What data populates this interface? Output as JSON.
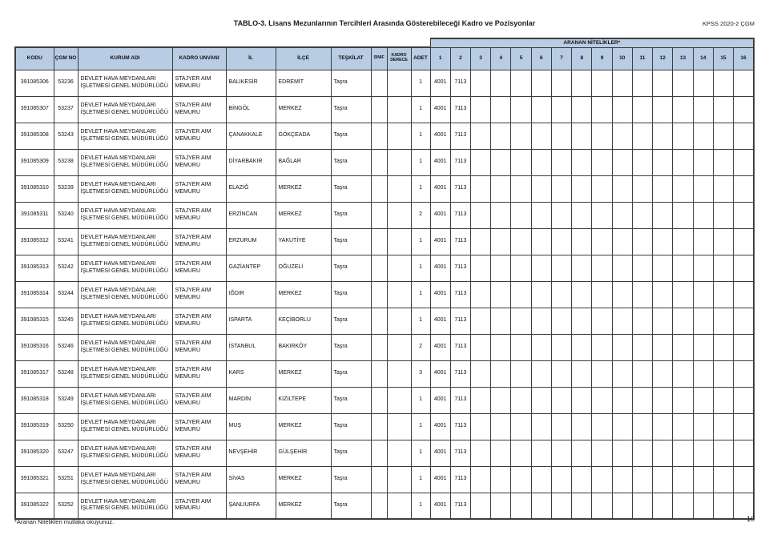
{
  "header": {
    "title": "TABLO-3. Lisans Mezunlarının Tercihleri Arasında Gösterebileceği Kadro ve Pozisyonlar",
    "exam_label": "KPSS 2020-2 ÇGM"
  },
  "table": {
    "qualifications_band_label": "ARANAN NİTELİKLER*",
    "columns": [
      "KODU",
      "ÇGM NO",
      "KURUM ADI",
      "KADRO UNVANI",
      "İL",
      "İLÇE",
      "TEŞKİLAT",
      "SINIF",
      "KADRO DERECE",
      "ADET"
    ],
    "qualification_columns": [
      "1",
      "2",
      "3",
      "4",
      "5",
      "6",
      "7",
      "8",
      "9",
      "10",
      "11",
      "12",
      "13",
      "14",
      "15",
      "16"
    ],
    "rows": [
      {
        "kodu": "391085306",
        "cgm_no": "53236",
        "kurum_adi": "DEVLET HAVA MEYDANLARI İŞLETMESİ GENEL MÜDÜRLÜĞÜ",
        "kadro_unvani": "STAJYER AIM MEMURU",
        "il": "BALIKESİR",
        "ilce": "EDREMİT",
        "teskilat": "Taşra",
        "sinif": "",
        "kadro_derece": "",
        "adet": "1",
        "nitelikler": [
          "4001",
          "7113"
        ]
      },
      {
        "kodu": "391085307",
        "cgm_no": "53237",
        "kurum_adi": "DEVLET HAVA MEYDANLARI İŞLETMESİ GENEL MÜDÜRLÜĞÜ",
        "kadro_unvani": "STAJYER AIM MEMURU",
        "il": "BİNGÖL",
        "ilce": "MERKEZ",
        "teskilat": "Taşra",
        "sinif": "",
        "kadro_derece": "",
        "adet": "1",
        "nitelikler": [
          "4001",
          "7113"
        ]
      },
      {
        "kodu": "391085308",
        "cgm_no": "53243",
        "kurum_adi": "DEVLET HAVA MEYDANLARI İŞLETMESİ GENEL MÜDÜRLÜĞÜ",
        "kadro_unvani": "STAJYER AIM MEMURU",
        "il": "ÇANAKKALE",
        "ilce": "GÖKÇEADA",
        "teskilat": "Taşra",
        "sinif": "",
        "kadro_derece": "",
        "adet": "1",
        "nitelikler": [
          "4001",
          "7113"
        ]
      },
      {
        "kodu": "391085309",
        "cgm_no": "53238",
        "kurum_adi": "DEVLET HAVA MEYDANLARI İŞLETMESİ GENEL MÜDÜRLÜĞÜ",
        "kadro_unvani": "STAJYER AIM MEMURU",
        "il": "DİYARBAKIR",
        "ilce": "BAĞLAR",
        "teskilat": "Taşra",
        "sinif": "",
        "kadro_derece": "",
        "adet": "1",
        "nitelikler": [
          "4001",
          "7113"
        ]
      },
      {
        "kodu": "391085310",
        "cgm_no": "53239",
        "kurum_adi": "DEVLET HAVA MEYDANLARI İŞLETMESİ GENEL MÜDÜRLÜĞÜ",
        "kadro_unvani": "STAJYER AIM MEMURU",
        "il": "ELAZIĞ",
        "ilce": "MERKEZ",
        "teskilat": "Taşra",
        "sinif": "",
        "kadro_derece": "",
        "adet": "1",
        "nitelikler": [
          "4001",
          "7113"
        ]
      },
      {
        "kodu": "391085311",
        "cgm_no": "53240",
        "kurum_adi": "DEVLET HAVA MEYDANLARI İŞLETMESİ GENEL MÜDÜRLÜĞÜ",
        "kadro_unvani": "STAJYER AIM MEMURU",
        "il": "ERZİNCAN",
        "ilce": "MERKEZ",
        "teskilat": "Taşra",
        "sinif": "",
        "kadro_derece": "",
        "adet": "2",
        "nitelikler": [
          "4001",
          "7113"
        ]
      },
      {
        "kodu": "391085312",
        "cgm_no": "53241",
        "kurum_adi": "DEVLET HAVA MEYDANLARI İŞLETMESİ GENEL MÜDÜRLÜĞÜ",
        "kadro_unvani": "STAJYER AIM MEMURU",
        "il": "ERZURUM",
        "ilce": "YAKUTİYE",
        "teskilat": "Taşra",
        "sinif": "",
        "kadro_derece": "",
        "adet": "1",
        "nitelikler": [
          "4001",
          "7113"
        ]
      },
      {
        "kodu": "391085313",
        "cgm_no": "53242",
        "kurum_adi": "DEVLET HAVA MEYDANLARI İŞLETMESİ GENEL MÜDÜRLÜĞÜ",
        "kadro_unvani": "STAJYER AIM MEMURU",
        "il": "GAZİANTEP",
        "ilce": "OĞUZELİ",
        "teskilat": "Taşra",
        "sinif": "",
        "kadro_derece": "",
        "adet": "1",
        "nitelikler": [
          "4001",
          "7113"
        ]
      },
      {
        "kodu": "391085314",
        "cgm_no": "53244",
        "kurum_adi": "DEVLET HAVA MEYDANLARI İŞLETMESİ GENEL MÜDÜRLÜĞÜ",
        "kadro_unvani": "STAJYER AIM MEMURU",
        "il": "IĞDIR",
        "ilce": "MERKEZ",
        "teskilat": "Taşra",
        "sinif": "",
        "kadro_derece": "",
        "adet": "1",
        "nitelikler": [
          "4001",
          "7113"
        ]
      },
      {
        "kodu": "391085315",
        "cgm_no": "53245",
        "kurum_adi": "DEVLET HAVA MEYDANLARI İŞLETMESİ GENEL MÜDÜRLÜĞÜ",
        "kadro_unvani": "STAJYER AIM MEMURU",
        "il": "ISPARTA",
        "ilce": "KEÇİBORLU",
        "teskilat": "Taşra",
        "sinif": "",
        "kadro_derece": "",
        "adet": "1",
        "nitelikler": [
          "4001",
          "7113"
        ]
      },
      {
        "kodu": "391085316",
        "cgm_no": "53246",
        "kurum_adi": "DEVLET HAVA MEYDANLARI İŞLETMESİ GENEL MÜDÜRLÜĞÜ",
        "kadro_unvani": "STAJYER AIM MEMURU",
        "il": "İSTANBUL",
        "ilce": "BAKIRKÖY",
        "teskilat": "Taşra",
        "sinif": "",
        "kadro_derece": "",
        "adet": "2",
        "nitelikler": [
          "4001",
          "7113"
        ]
      },
      {
        "kodu": "391085317",
        "cgm_no": "53248",
        "kurum_adi": "DEVLET HAVA MEYDANLARI İŞLETMESİ GENEL MÜDÜRLÜĞÜ",
        "kadro_unvani": "STAJYER AIM MEMURU",
        "il": "KARS",
        "ilce": "MERKEZ",
        "teskilat": "Taşra",
        "sinif": "",
        "kadro_derece": "",
        "adet": "3",
        "nitelikler": [
          "4001",
          "7113"
        ]
      },
      {
        "kodu": "391085318",
        "cgm_no": "53249",
        "kurum_adi": "DEVLET HAVA MEYDANLARI İŞLETMESİ GENEL MÜDÜRLÜĞÜ",
        "kadro_unvani": "STAJYER AIM MEMURU",
        "il": "MARDİN",
        "ilce": "KIZILTEPE",
        "teskilat": "Taşra",
        "sinif": "",
        "kadro_derece": "",
        "adet": "1",
        "nitelikler": [
          "4001",
          "7113"
        ]
      },
      {
        "kodu": "391085319",
        "cgm_no": "53250",
        "kurum_adi": "DEVLET HAVA MEYDANLARI İŞLETMESİ GENEL MÜDÜRLÜĞÜ",
        "kadro_unvani": "STAJYER AIM MEMURU",
        "il": "MUŞ",
        "ilce": "MERKEZ",
        "teskilat": "Taşra",
        "sinif": "",
        "kadro_derece": "",
        "adet": "1",
        "nitelikler": [
          "4001",
          "7113"
        ]
      },
      {
        "kodu": "391085320",
        "cgm_no": "53247",
        "kurum_adi": "DEVLET HAVA MEYDANLARI İŞLETMESİ GENEL MÜDÜRLÜĞÜ",
        "kadro_unvani": "STAJYER AIM MEMURU",
        "il": "NEVŞEHİR",
        "ilce": "GÜLŞEHİR",
        "teskilat": "Taşra",
        "sinif": "",
        "kadro_derece": "",
        "adet": "1",
        "nitelikler": [
          "4001",
          "7113"
        ]
      },
      {
        "kodu": "391085321",
        "cgm_no": "53251",
        "kurum_adi": "DEVLET HAVA MEYDANLARI İŞLETMESİ GENEL MÜDÜRLÜĞÜ",
        "kadro_unvani": "STAJYER AIM MEMURU",
        "il": "SİVAS",
        "ilce": "MERKEZ",
        "teskilat": "Taşra",
        "sinif": "",
        "kadro_derece": "",
        "adet": "1",
        "nitelikler": [
          "4001",
          "7113"
        ]
      },
      {
        "kodu": "391085322",
        "cgm_no": "53252",
        "kurum_adi": "DEVLET HAVA MEYDANLARI İŞLETMESİ GENEL MÜDÜRLÜĞÜ",
        "kadro_unvani": "STAJYER AIM MEMURU",
        "il": "ŞANLIURFA",
        "ilce": "MERKEZ",
        "teskilat": "Taşra",
        "sinif": "",
        "kadro_derece": "",
        "adet": "1",
        "nitelikler": [
          "4001",
          "7113"
        ]
      }
    ]
  },
  "footer": {
    "note": "*Aranan Nitelikleri mutlaka okuyunuz.",
    "page_number": "10"
  },
  "colors": {
    "header_fill": "#b8cce4",
    "border": "#3d3d3d"
  }
}
